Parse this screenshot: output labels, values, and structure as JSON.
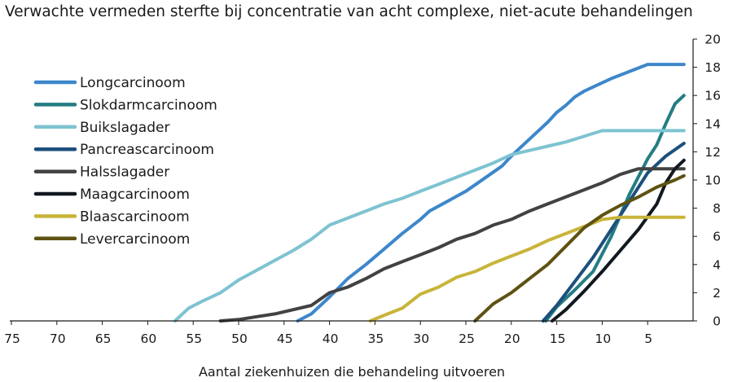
{
  "chart_data": {
    "type": "line",
    "title": "Verwachte vermeden sterfte bij concentratie van acht complexe, niet-acute behandelingen",
    "xlabel": "Aantal ziekenhuizen die behandeling uitvoeren",
    "ylabel": "",
    "xlim": [
      75,
      0
    ],
    "ylim": [
      0,
      20
    ],
    "x_ticks": [
      75,
      70,
      65,
      60,
      55,
      50,
      45,
      40,
      35,
      30,
      25,
      20,
      15,
      10,
      5
    ],
    "y_ticks": [
      0,
      2,
      4,
      6,
      8,
      10,
      12,
      14,
      16,
      18,
      20
    ],
    "y_axis_position": "right",
    "grid": false,
    "legend_position": "left",
    "series": [
      {
        "name": "Longcarcinoom",
        "color": "#3d87cb",
        "points": [
          [
            43.5,
            0
          ],
          [
            42,
            0.5
          ],
          [
            40,
            1.7
          ],
          [
            38,
            3.0
          ],
          [
            36,
            4.0
          ],
          [
            34,
            5.1
          ],
          [
            32,
            6.2
          ],
          [
            30,
            7.2
          ],
          [
            29,
            7.8
          ],
          [
            27,
            8.5
          ],
          [
            25,
            9.2
          ],
          [
            23,
            10.1
          ],
          [
            21,
            11.0
          ],
          [
            20,
            11.7
          ],
          [
            18,
            12.9
          ],
          [
            16,
            14.1
          ],
          [
            15,
            14.8
          ],
          [
            14,
            15.3
          ],
          [
            13,
            15.9
          ],
          [
            12,
            16.3
          ],
          [
            11,
            16.6
          ],
          [
            9,
            17.2
          ],
          [
            7,
            17.7
          ],
          [
            5,
            18.2
          ],
          [
            4,
            18.2
          ],
          [
            1,
            18.2
          ]
        ]
      },
      {
        "name": "Slokdarmcarcinoom",
        "color": "#247d82",
        "points": [
          [
            16.2,
            0
          ],
          [
            15,
            1.0
          ],
          [
            13,
            2.2
          ],
          [
            11,
            3.5
          ],
          [
            9,
            6.0
          ],
          [
            7,
            9.0
          ],
          [
            5,
            11.5
          ],
          [
            4,
            12.5
          ],
          [
            3,
            14.0
          ],
          [
            2,
            15.4
          ],
          [
            1,
            16.0
          ]
        ]
      },
      {
        "name": "Buikslagader",
        "color": "#7ec3d1",
        "points": [
          [
            57,
            0
          ],
          [
            55.5,
            0.9
          ],
          [
            54,
            1.4
          ],
          [
            52,
            2.0
          ],
          [
            50,
            2.9
          ],
          [
            48,
            3.6
          ],
          [
            46,
            4.3
          ],
          [
            44,
            5.0
          ],
          [
            42,
            5.8
          ],
          [
            40,
            6.8
          ],
          [
            38,
            7.3
          ],
          [
            36,
            7.8
          ],
          [
            34,
            8.3
          ],
          [
            32,
            8.7
          ],
          [
            30,
            9.2
          ],
          [
            28,
            9.7
          ],
          [
            26,
            10.2
          ],
          [
            24,
            10.7
          ],
          [
            22,
            11.2
          ],
          [
            20,
            11.8
          ],
          [
            18,
            12.1
          ],
          [
            16,
            12.4
          ],
          [
            14,
            12.7
          ],
          [
            12,
            13.1
          ],
          [
            10,
            13.5
          ],
          [
            5,
            13.5
          ],
          [
            1,
            13.5
          ]
        ]
      },
      {
        "name": "Pancreascarcinoom",
        "color": "#1c4f7c",
        "points": [
          [
            16.5,
            0
          ],
          [
            15,
            1.1
          ],
          [
            13,
            2.8
          ],
          [
            11,
            4.5
          ],
          [
            9,
            6.5
          ],
          [
            7,
            8.5
          ],
          [
            5,
            10.5
          ],
          [
            3,
            11.7
          ],
          [
            1,
            12.6
          ]
        ]
      },
      {
        "name": "Halsslagader",
        "color": "#424242",
        "points": [
          [
            52,
            0
          ],
          [
            50,
            0.1
          ],
          [
            48,
            0.3
          ],
          [
            46,
            0.5
          ],
          [
            44,
            0.8
          ],
          [
            42,
            1.1
          ],
          [
            40,
            2.0
          ],
          [
            38,
            2.4
          ],
          [
            36,
            3.0
          ],
          [
            34,
            3.7
          ],
          [
            32,
            4.2
          ],
          [
            30,
            4.7
          ],
          [
            28,
            5.2
          ],
          [
            26,
            5.8
          ],
          [
            24,
            6.2
          ],
          [
            22,
            6.8
          ],
          [
            20,
            7.2
          ],
          [
            18,
            7.8
          ],
          [
            16,
            8.3
          ],
          [
            14,
            8.8
          ],
          [
            12,
            9.3
          ],
          [
            10,
            9.8
          ],
          [
            8,
            10.4
          ],
          [
            6,
            10.8
          ],
          [
            4,
            10.8
          ],
          [
            1,
            10.8
          ]
        ]
      },
      {
        "name": "Maagcarcinoom",
        "color": "#111820",
        "points": [
          [
            15.5,
            0
          ],
          [
            14,
            0.8
          ],
          [
            12,
            2.1
          ],
          [
            10,
            3.5
          ],
          [
            8,
            5.0
          ],
          [
            6,
            6.5
          ],
          [
            4,
            8.3
          ],
          [
            3,
            9.8
          ],
          [
            2,
            10.8
          ],
          [
            1,
            11.4
          ]
        ]
      },
      {
        "name": "Blaascarcinoom",
        "color": "#c8b43a",
        "points": [
          [
            35.5,
            0
          ],
          [
            34,
            0.4
          ],
          [
            32,
            0.9
          ],
          [
            30,
            1.9
          ],
          [
            28,
            2.4
          ],
          [
            26,
            3.1
          ],
          [
            24,
            3.5
          ],
          [
            22,
            4.1
          ],
          [
            20,
            4.6
          ],
          [
            18,
            5.1
          ],
          [
            16,
            5.7
          ],
          [
            14,
            6.2
          ],
          [
            12,
            6.7
          ],
          [
            10,
            7.2
          ],
          [
            8,
            7.35
          ],
          [
            5,
            7.35
          ],
          [
            1,
            7.35
          ]
        ]
      },
      {
        "name": "Levercarcinoom",
        "color": "#5e5212",
        "points": [
          [
            24,
            0
          ],
          [
            22,
            1.2
          ],
          [
            20,
            2.0
          ],
          [
            18,
            3.0
          ],
          [
            16,
            4.0
          ],
          [
            14,
            5.3
          ],
          [
            12,
            6.6
          ],
          [
            10,
            7.5
          ],
          [
            8,
            8.2
          ],
          [
            6,
            8.8
          ],
          [
            4,
            9.5
          ],
          [
            2,
            10.0
          ],
          [
            1,
            10.3
          ]
        ]
      }
    ]
  }
}
